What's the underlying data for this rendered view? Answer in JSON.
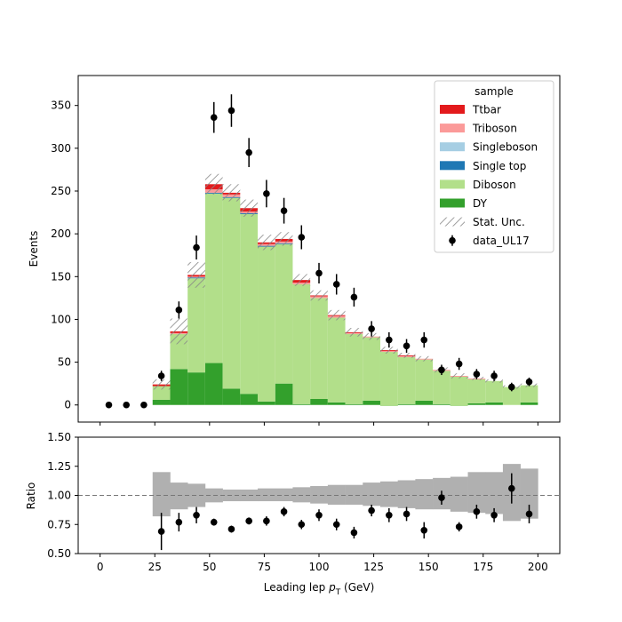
{
  "chart_data": {
    "type": "bar",
    "stacked": true,
    "xlabel_main": "Leading lep ",
    "xlabel_sym": "p",
    "xlabel_sub": "T",
    "xlabel_unit": " (GeV)",
    "top": {
      "ylabel": "Events",
      "xlim": [
        -10,
        210
      ],
      "ylim": [
        -20,
        385
      ],
      "yticks": [
        0,
        50,
        100,
        150,
        200,
        250,
        300,
        350
      ],
      "bin_edges": [
        24,
        32,
        40,
        48,
        56,
        64,
        72,
        80,
        88,
        96,
        104,
        112,
        120,
        128,
        136,
        144,
        152,
        160,
        168,
        176,
        184,
        192,
        200
      ],
      "series": [
        {
          "name": "DY",
          "color": "#33a02c",
          "values": [
            6,
            42,
            38,
            49,
            19,
            13,
            4,
            25,
            1,
            7,
            3,
            1,
            5,
            -1,
            1,
            5,
            1,
            -1,
            2,
            3,
            0,
            3
          ]
        },
        {
          "name": "Diboson",
          "color": "#b2df8a",
          "values": [
            16,
            41,
            110,
            198,
            223,
            210,
            181,
            163,
            140,
            118,
            99,
            82,
            74,
            63,
            55,
            48,
            39,
            34,
            28,
            25,
            21,
            20
          ]
        },
        {
          "name": "Single top",
          "color": "#1f78b4",
          "values": [
            0,
            0,
            1,
            1,
            1,
            1,
            1,
            1,
            0,
            0,
            0,
            0,
            0,
            0,
            0,
            0,
            0,
            0,
            0,
            0,
            0,
            0
          ]
        },
        {
          "name": "Singleboson",
          "color": "#a6cee3",
          "values": [
            0,
            0,
            0,
            0,
            0,
            0,
            0,
            0,
            0,
            0,
            0,
            0,
            0,
            0,
            0,
            0,
            0,
            0,
            0,
            0,
            0,
            0
          ]
        },
        {
          "name": "Triboson",
          "color": "#fb9a99",
          "values": [
            0,
            1,
            1,
            4,
            3,
            2,
            2,
            2,
            2,
            2,
            2,
            1,
            1,
            1,
            1,
            1,
            1,
            1,
            1,
            0,
            0,
            0
          ]
        },
        {
          "name": "Ttbar",
          "color": "#e31a1c",
          "values": [
            2,
            2,
            2,
            6,
            2,
            4,
            2,
            3,
            3,
            1,
            1,
            1,
            0,
            1,
            1,
            0,
            0,
            0,
            0,
            0,
            0,
            0
          ]
        }
      ],
      "stat_unc": [
        6,
        15,
        15,
        12,
        10,
        10,
        9,
        8,
        7,
        6,
        6,
        5,
        4,
        4,
        3,
        3,
        3,
        3,
        2,
        2,
        2,
        2
      ],
      "data": {
        "name": "data_UL17",
        "x": [
          4,
          12,
          20,
          28,
          36,
          44,
          52,
          60,
          68,
          76,
          84,
          92,
          100,
          108,
          116,
          124,
          132,
          140,
          148,
          156,
          164,
          172,
          180,
          188,
          196
        ],
        "y": [
          0,
          0,
          0,
          34,
          111,
          184,
          336,
          344,
          295,
          247,
          227,
          196,
          154,
          141,
          126,
          89,
          76,
          69,
          76,
          41,
          48,
          36,
          34,
          21,
          27
        ],
        "err": [
          0,
          0,
          0,
          6,
          10,
          14,
          18,
          19,
          17,
          16,
          15,
          14,
          12,
          12,
          11,
          9,
          9,
          8,
          9,
          6,
          7,
          6,
          6,
          5,
          5
        ]
      }
    },
    "bottom": {
      "ylabel": "Ratio",
      "ylim": [
        0.5,
        1.5
      ],
      "yticks": [
        "0.50",
        "0.75",
        "1.00",
        "1.25",
        "1.50"
      ],
      "xticks": [
        0,
        25,
        50,
        75,
        100,
        125,
        150,
        175,
        200
      ],
      "reference_line": 1.0,
      "unc_band": {
        "color": "#b0b0b0",
        "bin_edges": [
          24,
          32,
          40,
          48,
          56,
          64,
          72,
          80,
          88,
          96,
          104,
          112,
          120,
          128,
          136,
          144,
          152,
          160,
          168,
          176,
          184,
          192,
          200
        ],
        "lo": [
          0.82,
          0.88,
          0.9,
          0.94,
          0.95,
          0.95,
          0.95,
          0.95,
          0.94,
          0.93,
          0.92,
          0.92,
          0.91,
          0.9,
          0.89,
          0.88,
          0.88,
          0.86,
          0.85,
          0.84,
          0.78,
          0.8
        ],
        "hi": [
          1.2,
          1.11,
          1.1,
          1.06,
          1.05,
          1.05,
          1.06,
          1.06,
          1.07,
          1.08,
          1.09,
          1.09,
          1.11,
          1.12,
          1.13,
          1.14,
          1.15,
          1.16,
          1.2,
          1.2,
          1.27,
          1.23
        ]
      },
      "points": {
        "x": [
          28,
          36,
          44,
          52,
          60,
          68,
          76,
          84,
          92,
          100,
          108,
          116,
          124,
          132,
          140,
          148,
          156,
          164,
          172,
          180,
          188,
          196
        ],
        "y": [
          0.69,
          0.77,
          0.83,
          0.77,
          0.71,
          0.78,
          0.78,
          0.86,
          0.75,
          0.83,
          0.75,
          0.68,
          0.87,
          0.83,
          0.84,
          0.7,
          0.98,
          0.73,
          0.86,
          0.83,
          1.06,
          0.84
        ],
        "err": [
          0.16,
          0.08,
          0.07,
          0.03,
          0.03,
          0.03,
          0.04,
          0.04,
          0.04,
          0.05,
          0.05,
          0.05,
          0.05,
          0.06,
          0.06,
          0.07,
          0.06,
          0.04,
          0.06,
          0.06,
          0.13,
          0.08
        ]
      }
    },
    "legend": {
      "title": "sample",
      "placement": "upper right",
      "entries": [
        {
          "label": "Ttbar",
          "color": "#e31a1c",
          "kind": "patch"
        },
        {
          "label": "Triboson",
          "color": "#fb9a99",
          "kind": "patch"
        },
        {
          "label": "Singleboson",
          "color": "#a6cee3",
          "kind": "patch"
        },
        {
          "label": "Single top",
          "color": "#1f78b4",
          "kind": "patch"
        },
        {
          "label": "Diboson",
          "color": "#b2df8a",
          "kind": "patch"
        },
        {
          "label": "DY",
          "color": "#33a02c",
          "kind": "patch"
        },
        {
          "label": "Stat. Unc.",
          "color": "#888888",
          "kind": "hatch"
        },
        {
          "label": "data_UL17",
          "color": "#000000",
          "kind": "marker"
        }
      ]
    }
  }
}
